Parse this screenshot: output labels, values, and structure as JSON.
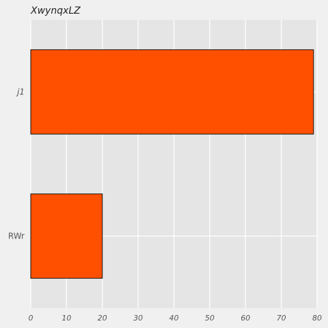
{
  "chart_data": {
    "type": "bar",
    "orientation": "horizontal",
    "title": "XwynqxLZ",
    "xlabel": "",
    "ylabel": "",
    "categories": [
      "j1",
      "RWr"
    ],
    "values": [
      79,
      20
    ],
    "xlim": [
      0,
      80
    ],
    "xticks": [
      "0",
      "10",
      "20",
      "30",
      "40",
      "50",
      "60",
      "70",
      "80"
    ],
    "grid": true,
    "colors": {
      "bar": "#ff5000",
      "bar_edge": "#111111",
      "plot_background": "#e5e5e5",
      "figure_background": "#f0f0f0",
      "grid": "#ffffff"
    }
  }
}
